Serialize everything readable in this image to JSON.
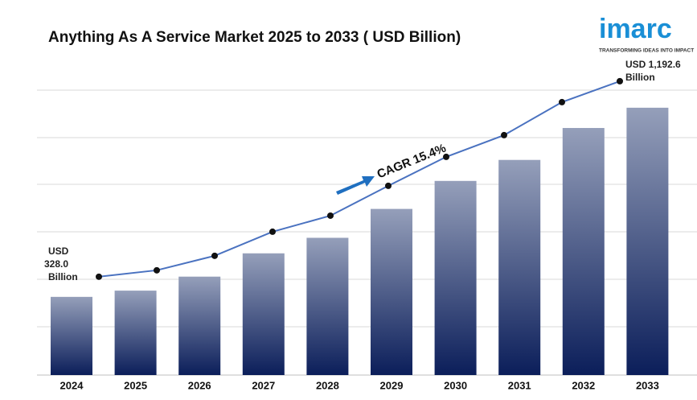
{
  "chart_data": {
    "type": "bar",
    "title": "Anything As A Service Market 2025 to 2033 ( USD Billion)",
    "categories": [
      "2024",
      "2025",
      "2026",
      "2027",
      "2028",
      "2029",
      "2030",
      "2031",
      "2032",
      "2033"
    ],
    "values": [
      328.0,
      356.5,
      420.5,
      527,
      598,
      730,
      858,
      954,
      1100,
      1192.6
    ],
    "color": "#0b1e5a",
    "line_color": "#4a72c0",
    "start_label": [
      "USD",
      "328.0",
      "Billion"
    ],
    "end_label": [
      "USD 1,192.6",
      "Billion"
    ],
    "cagr_label": "CAGR  15.4%",
    "logo": "imarc",
    "logo_tagline": "TRANSFORMING IDEAS INTO IMPACT"
  }
}
